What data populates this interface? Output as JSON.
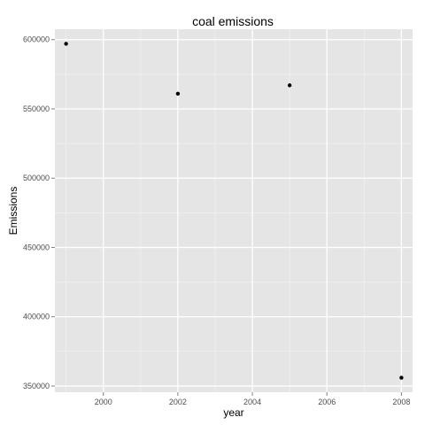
{
  "chart_data": {
    "type": "scatter",
    "title": "coal emissions",
    "xlabel": "year",
    "ylabel": "Emissions",
    "x": [
      1999,
      2002,
      2005,
      2008
    ],
    "y": [
      597000,
      561000,
      567000,
      356000
    ],
    "xlim": [
      1998.7,
      2008.3
    ],
    "ylim": [
      345500,
      607500
    ],
    "x_ticks": [
      2000,
      2002,
      2004,
      2006,
      2008
    ],
    "x_tick_labels": [
      "2000",
      "2002",
      "2004",
      "2006",
      "2008"
    ],
    "y_ticks": [
      350000,
      400000,
      450000,
      500000,
      550000,
      600000
    ],
    "y_tick_labels": [
      "350000",
      "400000",
      "450000",
      "500000",
      "550000",
      "600000"
    ],
    "grid": true,
    "legend": "none",
    "colors": {
      "panel": "#e5e5e5",
      "grid_major": "#ffffff",
      "grid_minor": "#f2f2f2",
      "point": "#000000",
      "tick_text": "#4d4d4d",
      "tick_mark": "#7f7f7f"
    }
  }
}
